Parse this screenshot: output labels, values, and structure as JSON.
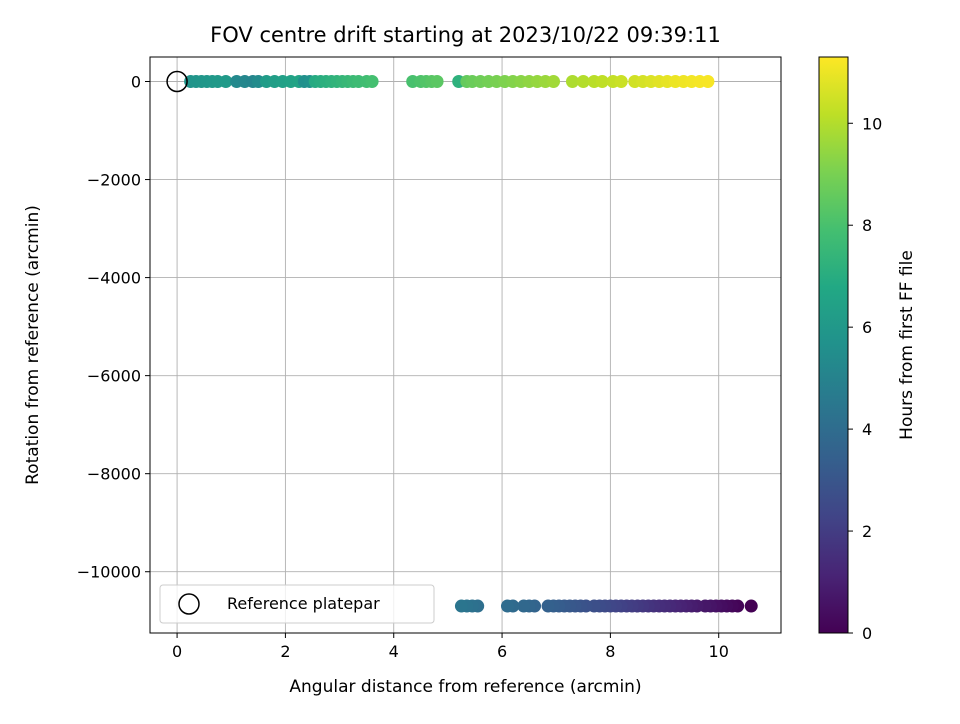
{
  "chart_data": {
    "type": "scatter",
    "title": "FOV centre drift starting at 2023/10/22 09:39:11",
    "xlabel": "Angular distance from reference (arcmin)",
    "ylabel": "Rotation from reference (arcmin)",
    "xlim": [
      -0.5,
      11.15
    ],
    "ylim": [
      -11250,
      500
    ],
    "xticks": [
      0,
      2,
      4,
      6,
      8,
      10
    ],
    "xtick_labels": [
      "0",
      "2",
      "4",
      "6",
      "8",
      "10"
    ],
    "yticks": [
      0,
      -2000,
      -4000,
      -6000,
      -8000,
      -10000
    ],
    "ytick_labels": [
      "0",
      "−2000",
      "−4000",
      "−6000",
      "−8000",
      "−10000"
    ],
    "grid": true,
    "legend": {
      "placement": "lower-left",
      "entries": [
        "Reference platepar"
      ]
    },
    "colormap": "viridis",
    "colorbar": {
      "label": "Hours from first FF file",
      "range": [
        0,
        11.3
      ],
      "ticks": [
        0,
        2,
        4,
        6,
        8,
        10
      ],
      "tick_labels": [
        "0",
        "2",
        "4",
        "6",
        "8",
        "10"
      ]
    },
    "reference_point": {
      "x": 0,
      "y": 0
    },
    "series": [
      {
        "y": -10700,
        "points": [
          [
            10.6,
            0.0
          ],
          [
            10.35,
            0.1
          ],
          [
            10.25,
            0.2
          ],
          [
            10.15,
            0.3
          ],
          [
            10.05,
            0.4
          ],
          [
            9.95,
            0.5
          ],
          [
            9.85,
            0.6
          ],
          [
            9.75,
            0.7
          ],
          [
            9.6,
            0.8
          ],
          [
            9.5,
            0.9
          ],
          [
            9.4,
            1.0
          ],
          [
            9.3,
            1.1
          ],
          [
            9.2,
            1.2
          ],
          [
            9.1,
            1.3
          ],
          [
            9.0,
            1.4
          ],
          [
            8.9,
            1.5
          ],
          [
            8.8,
            1.6
          ],
          [
            8.7,
            1.7
          ],
          [
            8.6,
            1.8
          ],
          [
            8.5,
            1.9
          ],
          [
            8.4,
            2.0
          ],
          [
            8.3,
            2.1
          ],
          [
            8.2,
            2.2
          ],
          [
            8.1,
            2.3
          ],
          [
            8.0,
            2.4
          ],
          [
            7.9,
            2.5
          ],
          [
            7.8,
            2.6
          ],
          [
            7.7,
            2.7
          ],
          [
            7.55,
            2.8
          ],
          [
            7.45,
            2.9
          ],
          [
            7.35,
            3.0
          ],
          [
            7.25,
            3.1
          ],
          [
            7.15,
            3.2
          ],
          [
            7.05,
            3.3
          ],
          [
            6.95,
            3.4
          ],
          [
            6.85,
            3.5
          ],
          [
            6.6,
            3.6
          ],
          [
            6.5,
            3.7
          ],
          [
            6.4,
            3.8
          ],
          [
            6.2,
            3.9
          ],
          [
            6.1,
            4.0
          ],
          [
            5.55,
            4.1
          ],
          [
            5.45,
            4.2
          ],
          [
            5.35,
            4.3
          ],
          [
            5.25,
            4.4
          ]
        ]
      },
      {
        "y": 0,
        "points": [
          [
            0.25,
            5.8
          ],
          [
            0.35,
            5.85
          ],
          [
            0.45,
            5.9
          ],
          [
            0.55,
            5.95
          ],
          [
            0.65,
            6.0
          ],
          [
            0.75,
            6.05
          ],
          [
            0.9,
            6.1
          ],
          [
            1.1,
            5.3
          ],
          [
            1.25,
            5.2
          ],
          [
            1.4,
            5.1
          ],
          [
            1.5,
            5.4
          ],
          [
            1.65,
            6.2
          ],
          [
            1.8,
            6.3
          ],
          [
            1.95,
            6.4
          ],
          [
            2.1,
            6.5
          ],
          [
            2.25,
            6.6
          ],
          [
            2.35,
            5.6
          ],
          [
            2.45,
            5.7
          ],
          [
            2.55,
            6.9
          ],
          [
            2.65,
            7.0
          ],
          [
            2.75,
            7.1
          ],
          [
            2.85,
            7.2
          ],
          [
            2.95,
            7.3
          ],
          [
            3.05,
            7.4
          ],
          [
            3.15,
            7.5
          ],
          [
            3.25,
            7.6
          ],
          [
            3.35,
            7.7
          ],
          [
            3.5,
            7.8
          ],
          [
            3.6,
            7.9
          ],
          [
            4.35,
            8.0
          ],
          [
            4.5,
            8.1
          ],
          [
            4.6,
            8.2
          ],
          [
            4.7,
            8.3
          ],
          [
            4.8,
            8.4
          ],
          [
            5.2,
            7.2
          ],
          [
            5.35,
            8.6
          ],
          [
            5.45,
            8.7
          ],
          [
            5.6,
            8.8
          ],
          [
            5.75,
            8.9
          ],
          [
            5.9,
            9.0
          ],
          [
            6.05,
            9.1
          ],
          [
            6.2,
            9.2
          ],
          [
            6.35,
            9.3
          ],
          [
            6.5,
            9.4
          ],
          [
            6.65,
            9.5
          ],
          [
            6.8,
            9.6
          ],
          [
            6.95,
            9.7
          ],
          [
            7.3,
            9.9
          ],
          [
            7.5,
            10.0
          ],
          [
            7.7,
            10.1
          ],
          [
            7.85,
            10.2
          ],
          [
            8.05,
            10.3
          ],
          [
            8.2,
            10.4
          ],
          [
            8.45,
            10.5
          ],
          [
            8.6,
            10.6
          ],
          [
            8.75,
            10.7
          ],
          [
            8.9,
            10.8
          ],
          [
            9.05,
            10.9
          ],
          [
            9.2,
            11.0
          ],
          [
            9.35,
            11.05
          ],
          [
            9.5,
            11.1
          ],
          [
            9.65,
            11.15
          ],
          [
            9.8,
            11.2
          ]
        ]
      }
    ]
  }
}
